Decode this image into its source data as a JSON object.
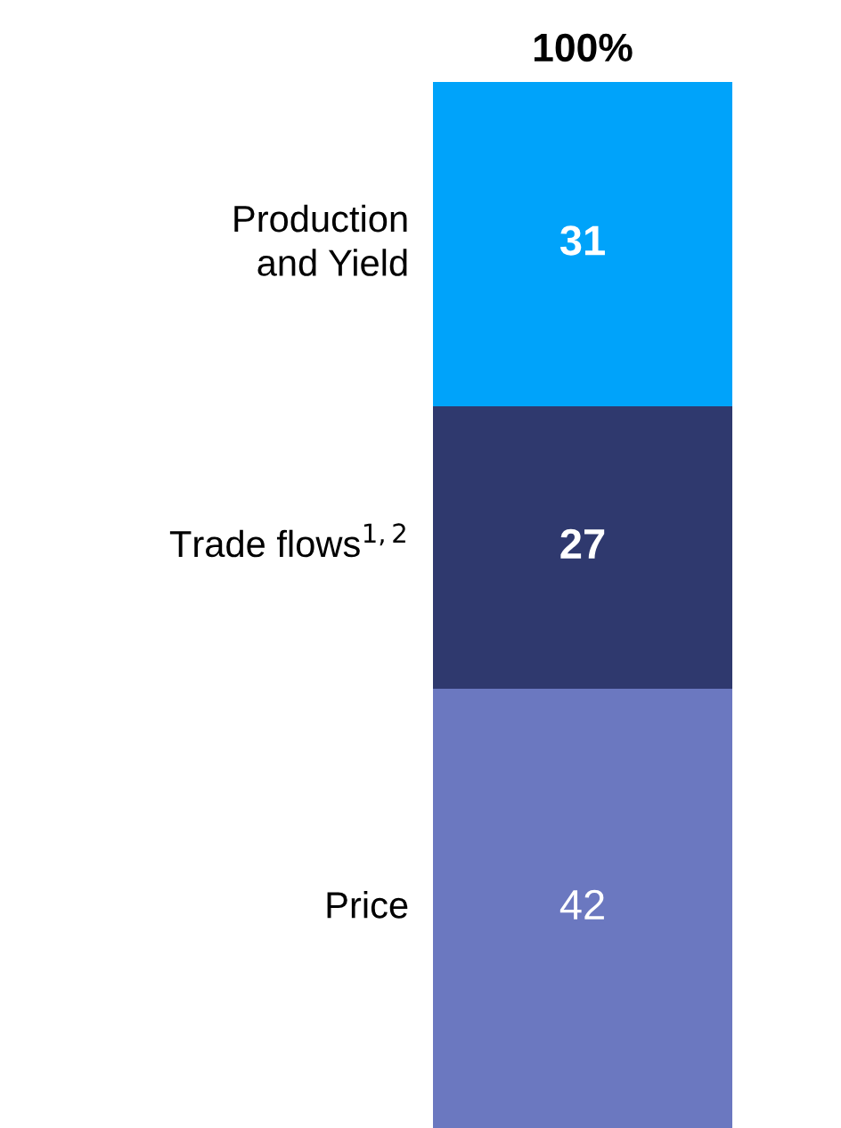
{
  "chart_data": {
    "type": "bar",
    "stacked": true,
    "categories": [
      null
    ],
    "series": [
      {
        "name": "Price",
        "color": "#6b78c0",
        "values": [
          42
        ]
      },
      {
        "name": "Trade flows$^{1,2}$",
        "color": "#2f396e",
        "values": [
          27
        ]
      },
      {
        "name": "Production\nand Yield",
        "color": "#00a3fa",
        "values": [
          31
        ]
      }
    ],
    "data_labels": true,
    "totals": [
      "100%"
    ],
    "legend": false
  }
}
